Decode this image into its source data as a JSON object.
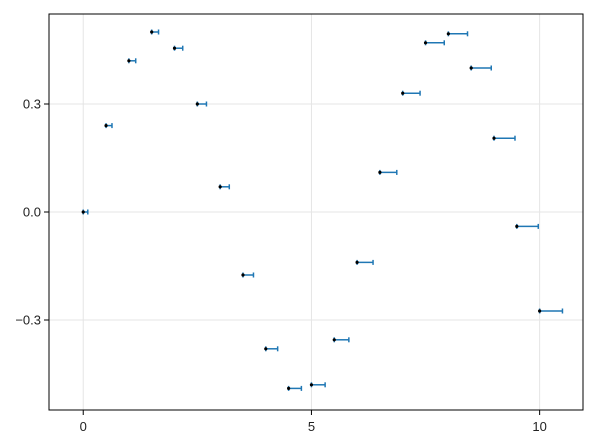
{
  "chart_data": {
    "type": "scatter",
    "title": "",
    "xlabel": "",
    "ylabel": "",
    "xlim": [
      -0.75,
      10.95
    ],
    "ylim": [
      -0.55,
      0.55
    ],
    "xticks": [
      0,
      5,
      10
    ],
    "xtick_labels": [
      "0",
      "5",
      "10"
    ],
    "yticks": [
      -0.3,
      0.0,
      0.3
    ],
    "ytick_labels": [
      "−0.3",
      "0.0",
      "0.3"
    ],
    "grid": true,
    "legend": "none",
    "colors": {
      "errorbar": "#1f77b4",
      "point": "#000000",
      "grid": "#e5e5e5",
      "frame": "#000000"
    },
    "series": [
      {
        "x": [
          0.0,
          0.5,
          1.0,
          1.5,
          2.0,
          2.5,
          3.0,
          3.5,
          4.0,
          4.5,
          5.0,
          5.5,
          6.0,
          6.5,
          7.0,
          7.5,
          8.0,
          8.5,
          9.0,
          9.5,
          10.0
        ],
        "y": [
          0.0,
          0.24,
          0.42,
          0.5,
          0.455,
          0.3,
          0.07,
          -0.175,
          -0.38,
          -0.49,
          -0.48,
          -0.355,
          -0.14,
          0.11,
          0.33,
          0.47,
          0.495,
          0.4,
          0.205,
          -0.04,
          -0.275
        ],
        "x_err_low": [
          0.0,
          0.0,
          0.0,
          0.0,
          0.0,
          0.0,
          0.0,
          0.0,
          0.0,
          0.0,
          0.0,
          0.0,
          0.0,
          0.0,
          0.0,
          0.0,
          0.0,
          0.0,
          0.0,
          0.0,
          0.0
        ],
        "x_err_high": [
          0.1,
          0.13,
          0.15,
          0.15,
          0.18,
          0.2,
          0.2,
          0.23,
          0.26,
          0.28,
          0.3,
          0.32,
          0.35,
          0.37,
          0.38,
          0.41,
          0.42,
          0.44,
          0.46,
          0.47,
          0.5
        ]
      }
    ]
  }
}
